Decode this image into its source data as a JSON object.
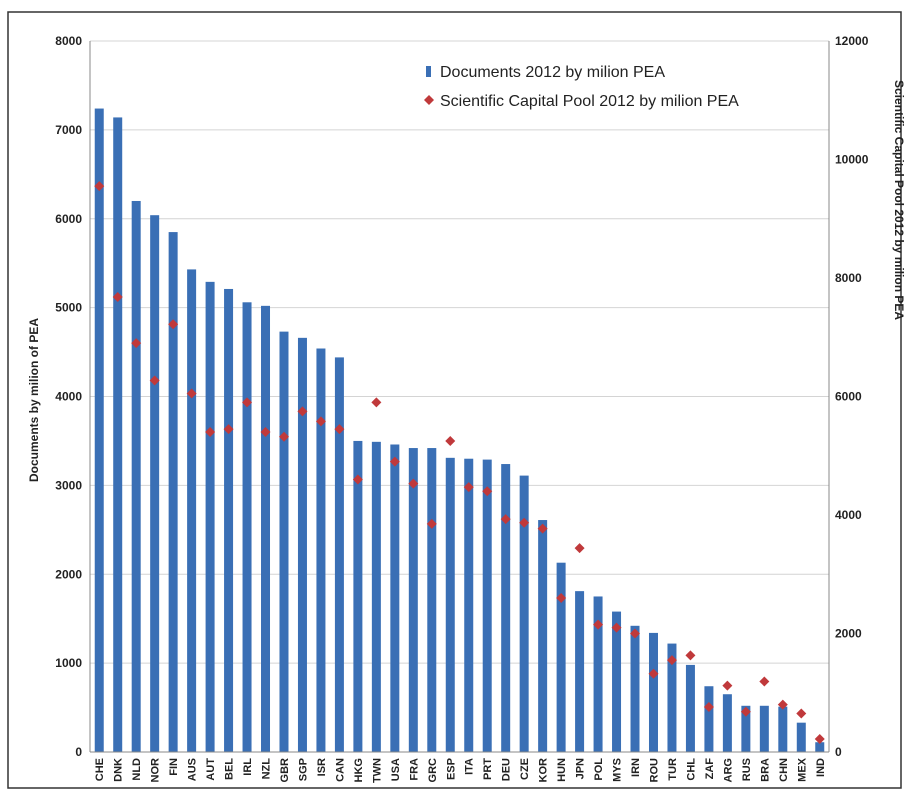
{
  "chart_data": {
    "type": "bar",
    "categories": [
      "CHE",
      "DNK",
      "NLD",
      "NOR",
      "FIN",
      "AUS",
      "AUT",
      "BEL",
      "IRL",
      "NZL",
      "GBR",
      "SGP",
      "ISR",
      "CAN",
      "HKG",
      "TWN",
      "USA",
      "FRA",
      "GRC",
      "ESP",
      "ITA",
      "PRT",
      "DEU",
      "CZE",
      "KOR",
      "HUN",
      "JPN",
      "POL",
      "MYS",
      "IRN",
      "ROU",
      "TUR",
      "CHL",
      "ZAF",
      "ARG",
      "RUS",
      "BRA",
      "CHN",
      "MEX",
      "IND"
    ],
    "series": [
      {
        "name": "Documents 2012 by milion PEA",
        "type": "bar",
        "axis": "left",
        "color": "#3a6fb5",
        "values": [
          7240,
          7140,
          6200,
          6040,
          5850,
          5430,
          5290,
          5210,
          5060,
          5020,
          4730,
          4660,
          4540,
          4440,
          3500,
          3490,
          3460,
          3420,
          3420,
          3310,
          3300,
          3290,
          3240,
          3110,
          2610,
          2130,
          1810,
          1750,
          1580,
          1420,
          1340,
          1220,
          980,
          740,
          650,
          520,
          520,
          510,
          330,
          110
        ]
      },
      {
        "name": "Scientific Capital Pool 2012 by milion PEA",
        "type": "scatter",
        "axis": "right",
        "color": "#c0393b",
        "marker": "diamond",
        "values": [
          9550,
          7680,
          6900,
          6270,
          7220,
          6050,
          5400,
          5450,
          5900,
          5400,
          5320,
          5750,
          5580,
          5450,
          4600,
          5900,
          4900,
          4530,
          3850,
          5250,
          4470,
          4400,
          3930,
          3870,
          3770,
          2600,
          3440,
          2150,
          2100,
          2000,
          1320,
          1550,
          1630,
          760,
          1120,
          680,
          1190,
          800,
          650,
          220
        ]
      }
    ],
    "ylabel": "Documents by milion of PEA",
    "y2label": "Scientific Capital Pool 2012 by milion PEA",
    "ylim": [
      0,
      8000
    ],
    "y2lim": [
      0,
      12000
    ],
    "yticks": [
      0,
      1000,
      2000,
      3000,
      4000,
      5000,
      6000,
      7000,
      8000
    ],
    "y2ticks": [
      0,
      2000,
      4000,
      6000,
      8000,
      10000,
      12000
    ],
    "grid": true,
    "legend": "top-center"
  }
}
